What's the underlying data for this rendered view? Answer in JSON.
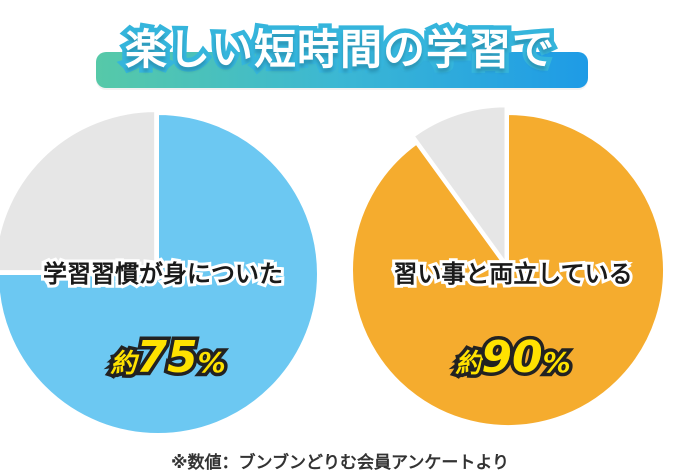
{
  "title": "楽しい短時間の学習で",
  "chart_data": [
    {
      "type": "pie",
      "label": "学習習慣が身についた",
      "value_prefix": "約",
      "value_number": "75",
      "value_unit": "%",
      "slices": [
        {
          "value": 75,
          "color": "#6cc8f2"
        },
        {
          "value": 25,
          "color": "#e6e6e6"
        }
      ]
    },
    {
      "type": "pie",
      "label": "習い事と両立している",
      "value_prefix": "約",
      "value_number": "90",
      "value_unit": "%",
      "slices": [
        {
          "value": 90,
          "color": "#f5ac2e"
        },
        {
          "value": 10,
          "color": "#e6e6e6"
        }
      ]
    }
  ],
  "footnote": "※数値：ブンブンどりむ会員アンケートより"
}
